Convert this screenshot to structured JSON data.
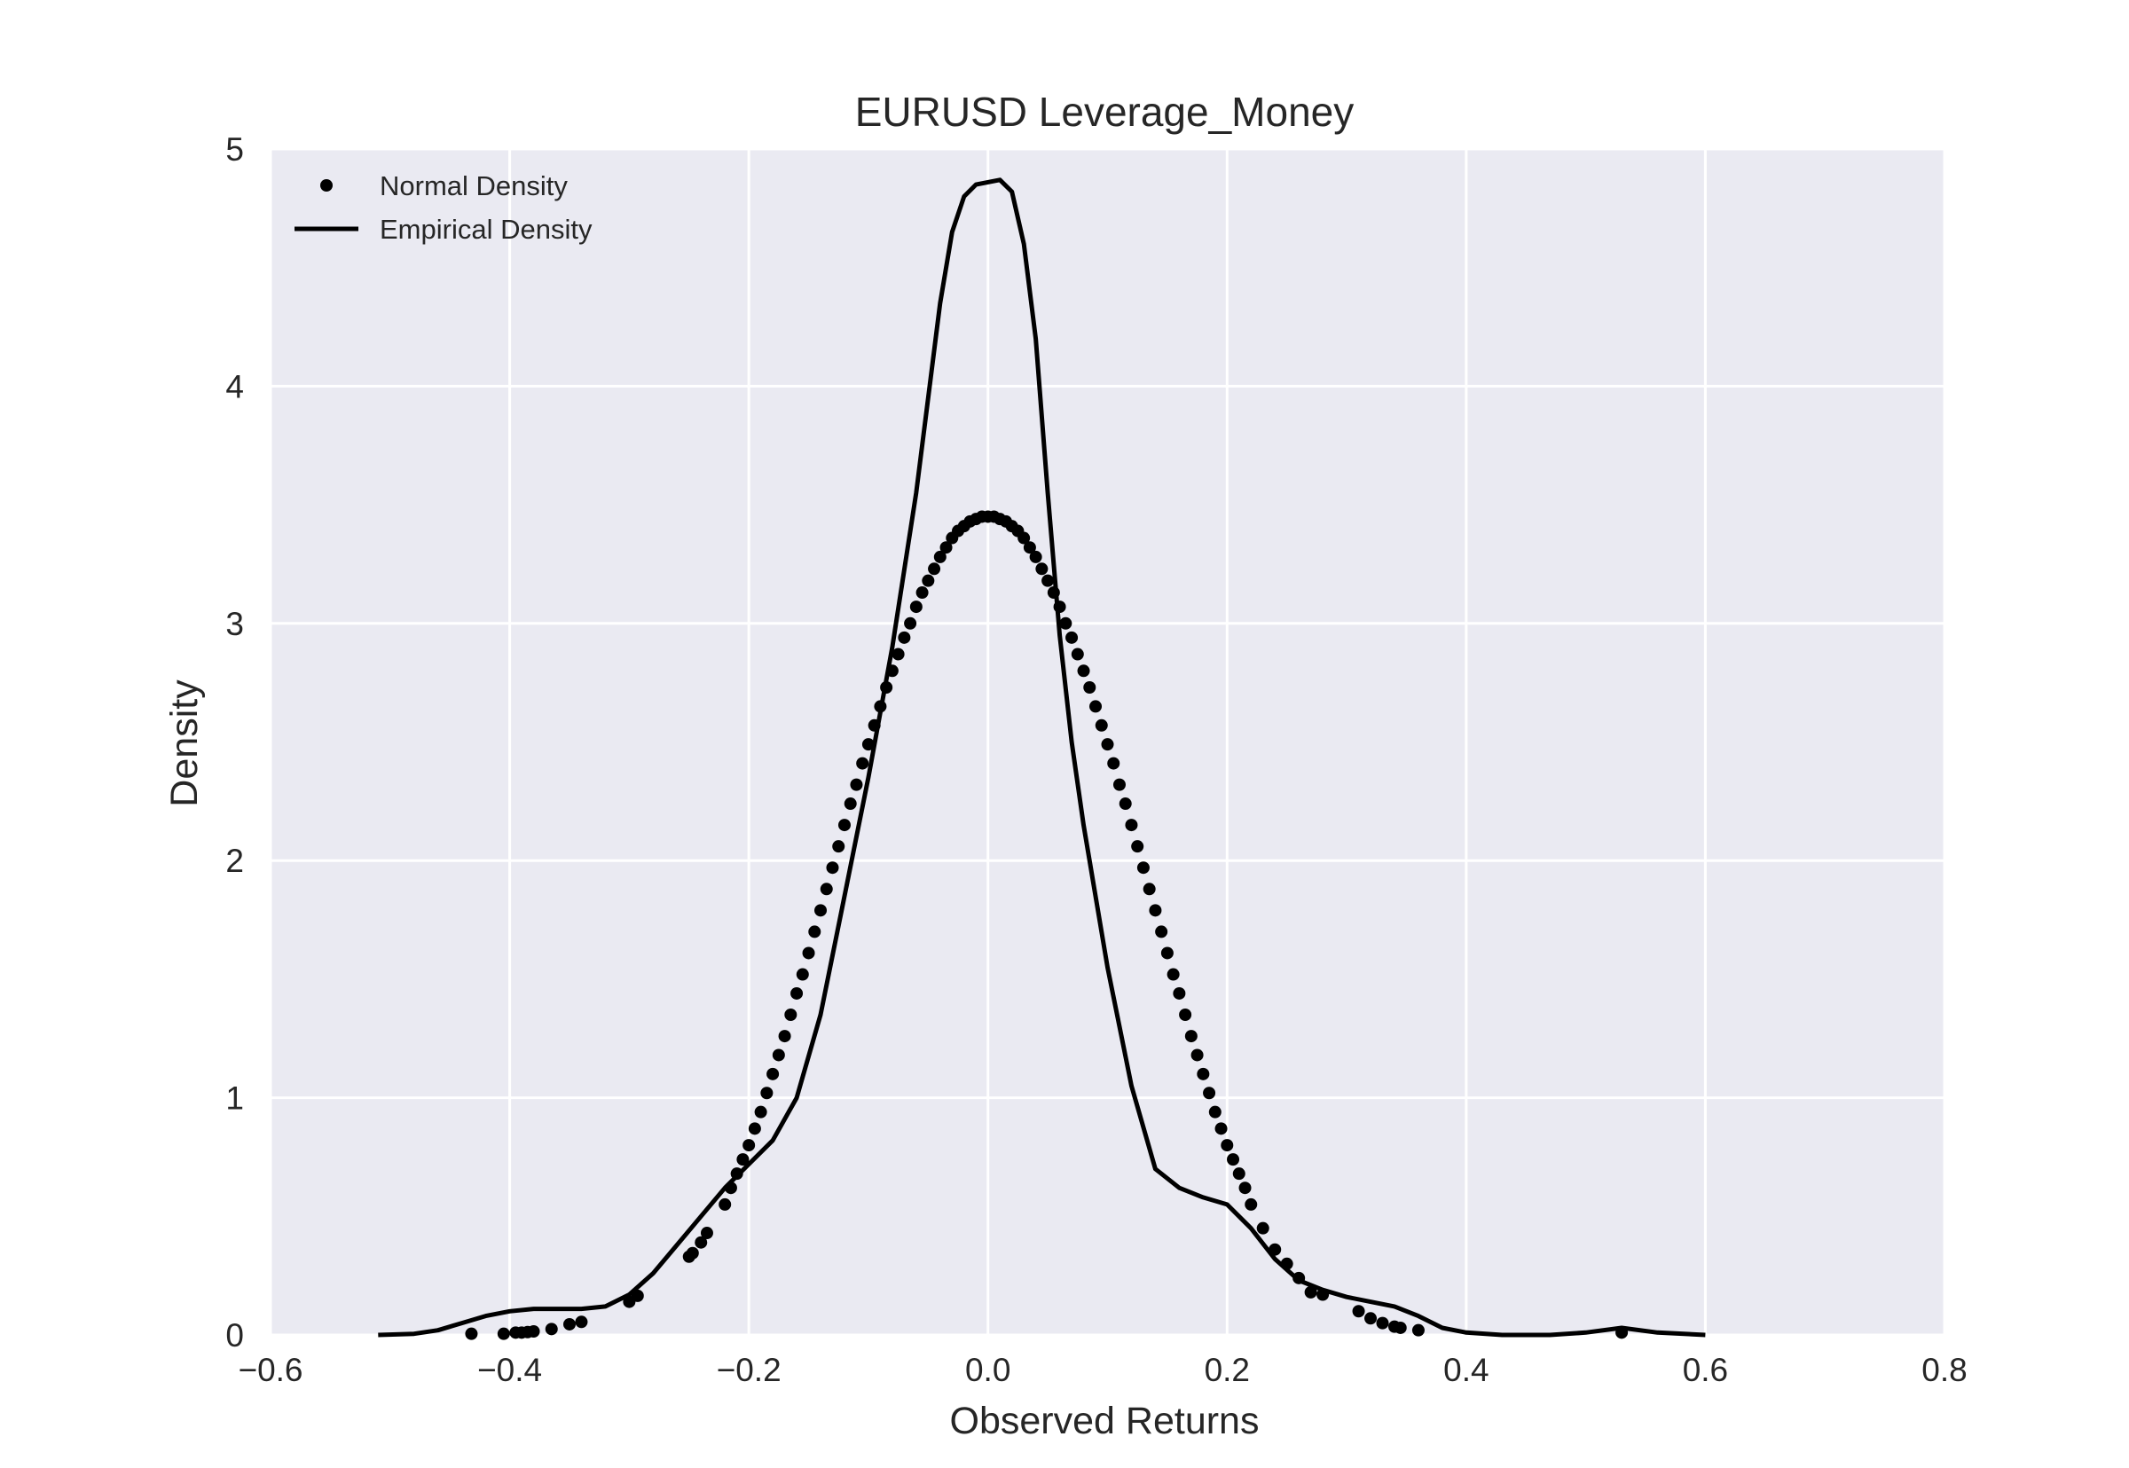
{
  "chart_data": {
    "type": "line",
    "title": "EURUSD Leverage_Money",
    "xlabel": "Observed Returns",
    "ylabel": "Density",
    "xlim": [
      -0.6,
      0.8
    ],
    "ylim": [
      0,
      5
    ],
    "x_ticks": [
      -0.6,
      -0.4,
      -0.2,
      0.0,
      0.2,
      0.4,
      0.6,
      0.8
    ],
    "x_tick_labels": [
      "−0.6",
      "−0.4",
      "−0.2",
      "0.0",
      "0.2",
      "0.4",
      "0.6",
      "0.8"
    ],
    "y_ticks": [
      0,
      1,
      2,
      3,
      4,
      5
    ],
    "y_tick_labels": [
      "0",
      "1",
      "2",
      "3",
      "4",
      "5"
    ],
    "grid": true,
    "legend_position": "top-left",
    "background_color": "#eaeaf2",
    "grid_color": "#ffffff",
    "series_color": "#000000",
    "series": [
      {
        "name": "Normal Density",
        "style": "markers",
        "x": [
          -0.432,
          -0.405,
          -0.395,
          -0.39,
          -0.385,
          -0.38,
          -0.365,
          -0.35,
          -0.34,
          -0.3,
          -0.293,
          -0.25,
          -0.247,
          -0.24,
          -0.235,
          -0.22,
          -0.215,
          -0.21,
          -0.205,
          -0.2,
          -0.195,
          -0.19,
          -0.185,
          -0.18,
          -0.175,
          -0.17,
          -0.165,
          -0.16,
          -0.155,
          -0.15,
          -0.145,
          -0.14,
          -0.135,
          -0.13,
          -0.125,
          -0.12,
          -0.115,
          -0.11,
          -0.105,
          -0.1,
          -0.095,
          -0.09,
          -0.085,
          -0.08,
          -0.075,
          -0.07,
          -0.065,
          -0.06,
          -0.055,
          -0.05,
          -0.045,
          -0.04,
          -0.035,
          -0.03,
          -0.025,
          -0.02,
          -0.015,
          -0.01,
          -0.005,
          0.0,
          0.005,
          0.01,
          0.015,
          0.02,
          0.025,
          0.03,
          0.035,
          0.04,
          0.045,
          0.05,
          0.055,
          0.06,
          0.065,
          0.07,
          0.075,
          0.08,
          0.085,
          0.09,
          0.095,
          0.1,
          0.105,
          0.11,
          0.115,
          0.12,
          0.125,
          0.13,
          0.135,
          0.14,
          0.145,
          0.15,
          0.155,
          0.16,
          0.165,
          0.17,
          0.175,
          0.18,
          0.185,
          0.19,
          0.195,
          0.2,
          0.205,
          0.21,
          0.215,
          0.22,
          0.23,
          0.24,
          0.25,
          0.26,
          0.27,
          0.28,
          0.31,
          0.32,
          0.33,
          0.34,
          0.345,
          0.36,
          0.53
        ],
        "y": [
          0.005,
          0.005,
          0.01,
          0.01,
          0.012,
          0.015,
          0.025,
          0.045,
          0.055,
          0.14,
          0.165,
          0.33,
          0.345,
          0.39,
          0.43,
          0.55,
          0.62,
          0.68,
          0.74,
          0.8,
          0.87,
          0.94,
          1.02,
          1.1,
          1.18,
          1.26,
          1.35,
          1.44,
          1.52,
          1.61,
          1.7,
          1.79,
          1.88,
          1.97,
          2.06,
          2.15,
          2.24,
          2.32,
          2.41,
          2.49,
          2.57,
          2.65,
          2.73,
          2.8,
          2.87,
          2.94,
          3.0,
          3.07,
          3.13,
          3.18,
          3.23,
          3.28,
          3.32,
          3.36,
          3.39,
          3.41,
          3.43,
          3.44,
          3.45,
          3.45,
          3.45,
          3.44,
          3.43,
          3.41,
          3.39,
          3.36,
          3.32,
          3.28,
          3.23,
          3.18,
          3.13,
          3.07,
          3.0,
          2.94,
          2.87,
          2.8,
          2.73,
          2.65,
          2.57,
          2.49,
          2.41,
          2.32,
          2.24,
          2.15,
          2.06,
          1.97,
          1.88,
          1.79,
          1.7,
          1.61,
          1.52,
          1.44,
          1.35,
          1.26,
          1.18,
          1.1,
          1.02,
          0.94,
          0.87,
          0.8,
          0.74,
          0.68,
          0.62,
          0.55,
          0.45,
          0.36,
          0.3,
          0.24,
          0.18,
          0.17,
          0.1,
          0.07,
          0.05,
          0.035,
          0.03,
          0.02,
          0.01
        ]
      },
      {
        "name": "Empirical Density",
        "style": "line",
        "x": [
          -0.51,
          -0.48,
          -0.46,
          -0.44,
          -0.42,
          -0.4,
          -0.38,
          -0.36,
          -0.34,
          -0.32,
          -0.3,
          -0.28,
          -0.26,
          -0.24,
          -0.22,
          -0.2,
          -0.18,
          -0.16,
          -0.14,
          -0.12,
          -0.1,
          -0.08,
          -0.06,
          -0.05,
          -0.04,
          -0.03,
          -0.02,
          -0.01,
          0.0,
          0.01,
          0.02,
          0.03,
          0.04,
          0.05,
          0.06,
          0.07,
          0.08,
          0.09,
          0.1,
          0.12,
          0.14,
          0.16,
          0.18,
          0.2,
          0.22,
          0.24,
          0.26,
          0.28,
          0.3,
          0.32,
          0.34,
          0.36,
          0.38,
          0.4,
          0.43,
          0.47,
          0.5,
          0.53,
          0.56,
          0.6
        ],
        "y": [
          0.0,
          0.005,
          0.02,
          0.05,
          0.08,
          0.1,
          0.11,
          0.11,
          0.11,
          0.12,
          0.17,
          0.26,
          0.38,
          0.5,
          0.62,
          0.72,
          0.82,
          1.0,
          1.35,
          1.85,
          2.35,
          2.9,
          3.55,
          3.95,
          4.35,
          4.65,
          4.8,
          4.85,
          4.86,
          4.87,
          4.82,
          4.6,
          4.2,
          3.55,
          2.95,
          2.5,
          2.15,
          1.85,
          1.55,
          1.05,
          0.7,
          0.62,
          0.58,
          0.55,
          0.45,
          0.32,
          0.23,
          0.19,
          0.16,
          0.14,
          0.12,
          0.08,
          0.03,
          0.01,
          0.0,
          0.0,
          0.01,
          0.03,
          0.01,
          0.0
        ]
      }
    ]
  }
}
